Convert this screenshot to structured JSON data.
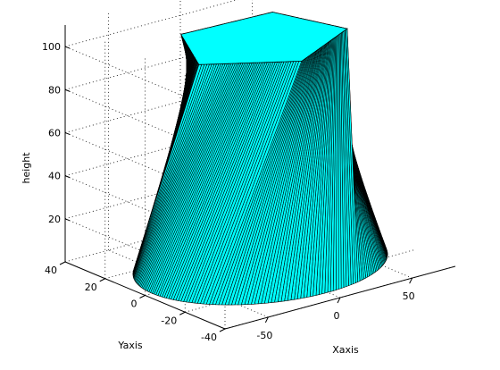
{
  "chart_data": {
    "type": "surface3d",
    "xlabel": "Xaxis",
    "ylabel": "Yaxis",
    "zlabel": "height",
    "xlim": [
      -80,
      80
    ],
    "ylim": [
      -40,
      40
    ],
    "zlim": [
      0,
      110
    ],
    "xticks": [
      -50,
      0,
      50
    ],
    "yticks": [
      -40,
      -20,
      0,
      20,
      40
    ],
    "zticks": [
      20,
      40,
      60,
      80,
      100
    ],
    "grid": true,
    "face_color": "#00ffff",
    "edge_color": "#000000",
    "shape": {
      "bottom_radius": 75,
      "top_radius": 52,
      "top_sides": 5,
      "height": 104,
      "twist_deg": 50
    }
  }
}
